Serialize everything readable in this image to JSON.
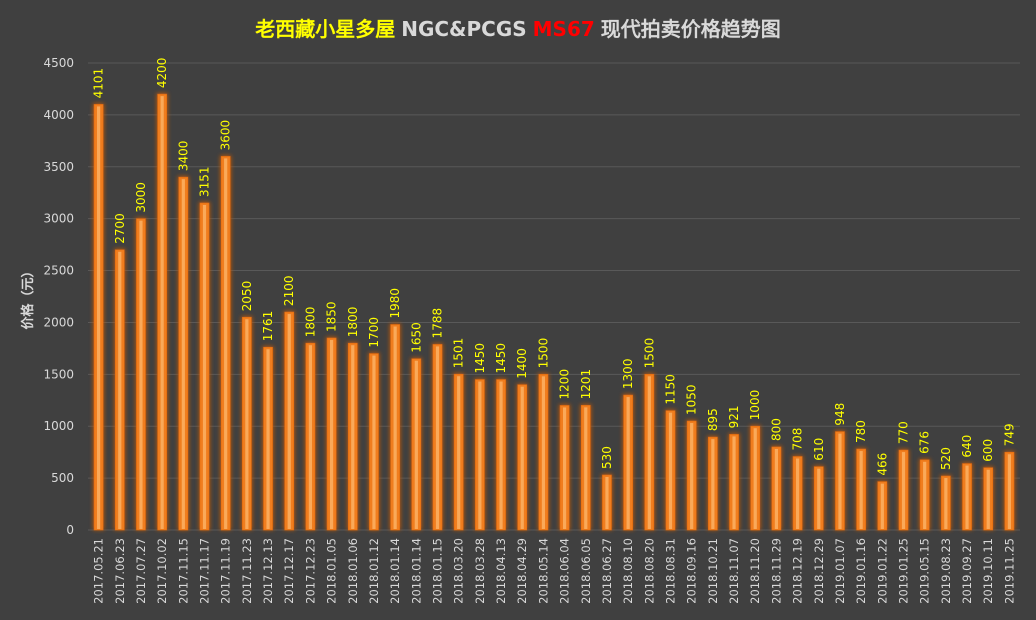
{
  "title": {
    "part1": "老西藏小星多屋",
    "part2": "NGC&PCGS",
    "part3": "MS67",
    "part4": "现代拍卖价格趋势图"
  },
  "colors": {
    "background": "#404040",
    "title_part1": "#ffff00",
    "title_part2": "#d9d9d9",
    "title_part3": "#ff0000",
    "title_part4": "#d9d9d9",
    "bar_fill": "#f07d1e",
    "bar_inner": "#ffc27a",
    "bar_glow": "#c55a11",
    "data_label": "#ffff00",
    "axis_text": "#d9d9d9",
    "gridline": "#595959"
  },
  "chart_data": {
    "type": "bar",
    "ylabel": "价格（元）",
    "xlabel": "",
    "ylim": [
      0,
      4500
    ],
    "y_ticks": [
      0,
      500,
      1000,
      1500,
      2000,
      2500,
      3000,
      3500,
      4000,
      4500
    ],
    "grid": true,
    "legend": "none",
    "categories": [
      "2017.05.21",
      "2017.06.23",
      "2017.07.27",
      "2017.10.02",
      "2017.11.15",
      "2017.11.17",
      "2017.11.19",
      "2017.11.23",
      "2017.12.13",
      "2017.12.17",
      "2017.12.23",
      "2018.01.05",
      "2018.01.06",
      "2018.01.12",
      "2018.01.14",
      "2018.01.14",
      "2018.01.15",
      "2018.03.20",
      "2018.03.28",
      "2018.04.13",
      "2018.04.29",
      "2018.05.14",
      "2018.06.04",
      "2018.06.05",
      "2018.06.27",
      "2018.08.10",
      "2018.08.20",
      "2018.08.31",
      "2018.09.16",
      "2018.10.21",
      "2018.11.07",
      "2018.11.20",
      "2018.11.29",
      "2018.12.19",
      "2018.12.29",
      "2019.01.07",
      "2019.01.16",
      "2019.01.22",
      "2019.01.25",
      "2019.05.15",
      "2019.08.23",
      "2019.09.27",
      "2019.10.11",
      "2019.11.25"
    ],
    "values": [
      4101,
      2700,
      3000,
      4200,
      3400,
      3151,
      3600,
      2050,
      1761,
      2100,
      1800,
      1850,
      1800,
      1700,
      1980,
      1650,
      1788,
      1501,
      1450,
      1450,
      1400,
      1500,
      1200,
      1201,
      530,
      1300,
      1500,
      1150,
      1050,
      895,
      921,
      1000,
      800,
      708,
      610,
      948,
      780,
      466,
      770,
      676,
      520,
      640,
      600,
      749
    ]
  }
}
